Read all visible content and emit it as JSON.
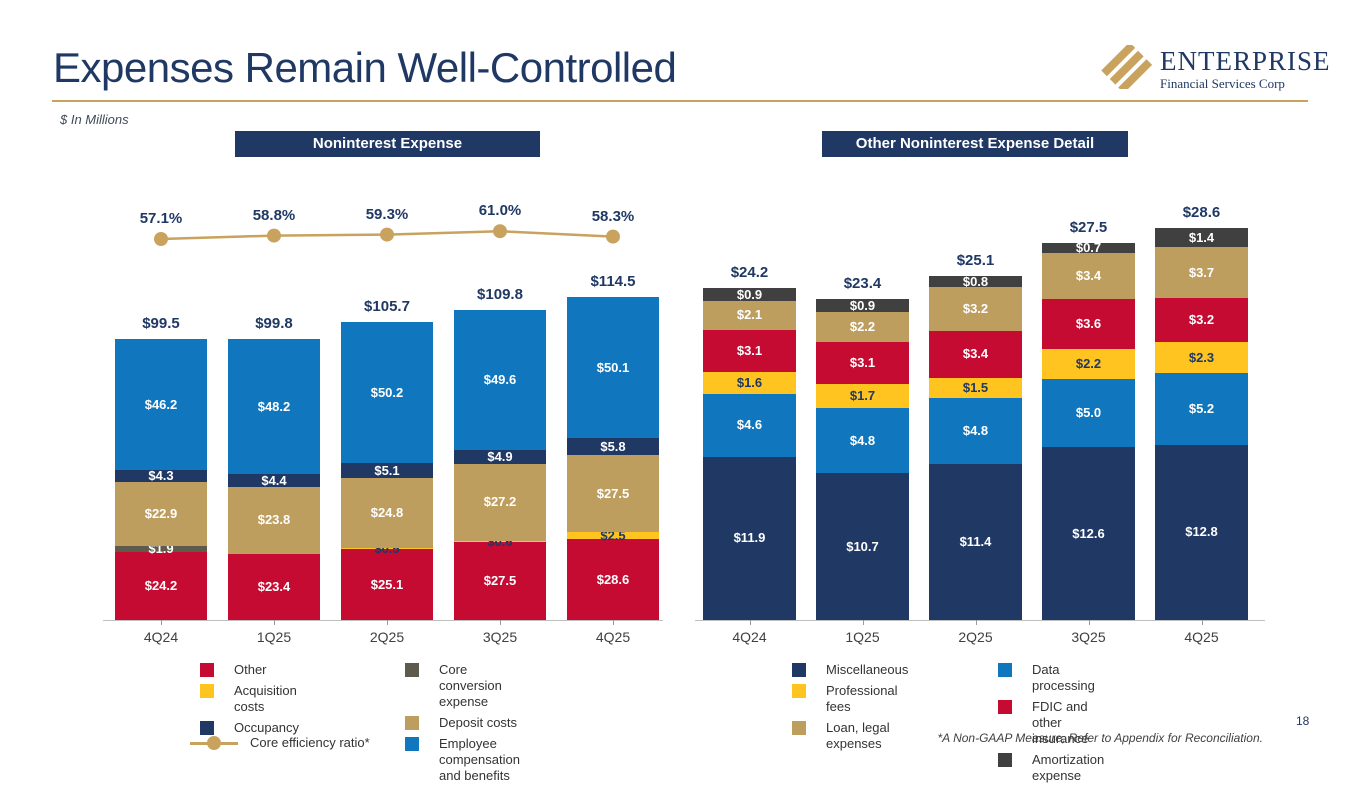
{
  "slide": {
    "title": "Expenses Remain Well-Controlled",
    "units_note": "$ In Millions",
    "footnote": "*A Non-GAAP Measure, Refer to Appendix for Reconciliation.",
    "page_number": "18"
  },
  "logo": {
    "name": "ENTERPRISE",
    "subtitle": "Financial Services Corp"
  },
  "colors": {
    "navy": "#1F3864",
    "red": "#C50B32",
    "yellow": "#FFC420",
    "tan": "#BD9E5F",
    "blue": "#1077BE",
    "gray_olive": "#5E5B4C",
    "gray_dark": "#404040",
    "gold": "#C9A25E",
    "axis": "#BFBFBF"
  },
  "chart_data": [
    {
      "type": "bar",
      "stacked": true,
      "title": "Noninterest Expense",
      "categories": [
        "4Q24",
        "1Q25",
        "2Q25",
        "3Q25",
        "4Q25"
      ],
      "totals": [
        99.5,
        99.8,
        105.7,
        109.8,
        114.5
      ],
      "series": [
        {
          "name": "Other",
          "color_key": "red",
          "label_color": "#FFFFFF",
          "values": [
            24.2,
            23.4,
            25.1,
            27.5,
            28.6
          ]
        },
        {
          "name": "Acquisition costs",
          "color_key": "yellow",
          "label_color": "#1F3864",
          "values": [
            0,
            0,
            0.5,
            0.6,
            2.5
          ]
        },
        {
          "name": "Core conversion expense",
          "color_key": "gray_olive",
          "label_color": "#FFFFFF",
          "values": [
            1.9,
            0,
            0,
            0,
            0
          ]
        },
        {
          "name": "Deposit costs",
          "color_key": "tan",
          "label_color": "#FFFFFF",
          "values": [
            22.9,
            23.8,
            24.8,
            27.2,
            27.5
          ]
        },
        {
          "name": "Occupancy",
          "color_key": "navy",
          "label_color": "#FFFFFF",
          "values": [
            4.3,
            4.4,
            5.1,
            4.9,
            5.8
          ]
        },
        {
          "name": "Employee compensation and benefits",
          "color_key": "blue",
          "label_color": "#FFFFFF",
          "values": [
            46.2,
            48.2,
            50.2,
            49.6,
            50.1
          ]
        }
      ],
      "line_series": {
        "name": "Core efficiency ratio*",
        "color_key": "gold",
        "values_pct": [
          57.1,
          58.8,
          59.3,
          61.0,
          58.3
        ]
      }
    },
    {
      "type": "bar",
      "stacked": true,
      "title": "Other Noninterest Expense Detail",
      "categories": [
        "4Q24",
        "1Q25",
        "2Q25",
        "3Q25",
        "4Q25"
      ],
      "totals": [
        24.2,
        23.4,
        25.1,
        27.5,
        28.6
      ],
      "series": [
        {
          "name": "Miscellaneous",
          "color_key": "navy",
          "label_color": "#FFFFFF",
          "values": [
            11.9,
            10.7,
            11.4,
            12.6,
            12.8
          ]
        },
        {
          "name": "Data processing",
          "color_key": "blue",
          "label_color": "#FFFFFF",
          "values": [
            4.6,
            4.8,
            4.8,
            5.0,
            5.2
          ]
        },
        {
          "name": "Professional fees",
          "color_key": "yellow",
          "label_color": "#1F3864",
          "values": [
            1.6,
            1.7,
            1.5,
            2.2,
            2.3
          ]
        },
        {
          "name": "FDIC and other insurance",
          "color_key": "red",
          "label_color": "#FFFFFF",
          "values": [
            3.1,
            3.1,
            3.4,
            3.6,
            3.2
          ]
        },
        {
          "name": "Loan, legal expenses",
          "color_key": "tan",
          "label_color": "#FFFFFF",
          "values": [
            2.1,
            2.2,
            3.2,
            3.4,
            3.7
          ]
        },
        {
          "name": "Amortization expense",
          "color_key": "gray_dark",
          "label_color": "#FFFFFF",
          "values": [
            0.9,
            0.9,
            0.8,
            0.7,
            1.4
          ]
        }
      ]
    }
  ],
  "legends": {
    "left": {
      "columns": [
        [
          {
            "label": "Other",
            "color_key": "red"
          },
          {
            "label": "Acquisition costs",
            "color_key": "yellow"
          },
          {
            "label": "Occupancy",
            "color_key": "navy"
          }
        ],
        [
          {
            "label": "Core conversion expense",
            "color_key": "gray_olive"
          },
          {
            "label": "Deposit costs",
            "color_key": "tan"
          },
          {
            "label": "Employee compensation and benefits",
            "color_key": "blue"
          }
        ]
      ],
      "line_item": {
        "label": "Core efficiency ratio*",
        "color_key": "gold"
      }
    },
    "right": {
      "columns": [
        [
          {
            "label": "Miscellaneous",
            "color_key": "navy"
          },
          {
            "label": "Professional fees",
            "color_key": "yellow"
          },
          {
            "label": "Loan, legal expenses",
            "color_key": "tan"
          }
        ],
        [
          {
            "label": "Data processing",
            "color_key": "blue"
          },
          {
            "label": "FDIC and other insurance",
            "color_key": "red"
          },
          {
            "label": "Amortization expense",
            "color_key": "gray_dark"
          }
        ]
      ]
    }
  }
}
